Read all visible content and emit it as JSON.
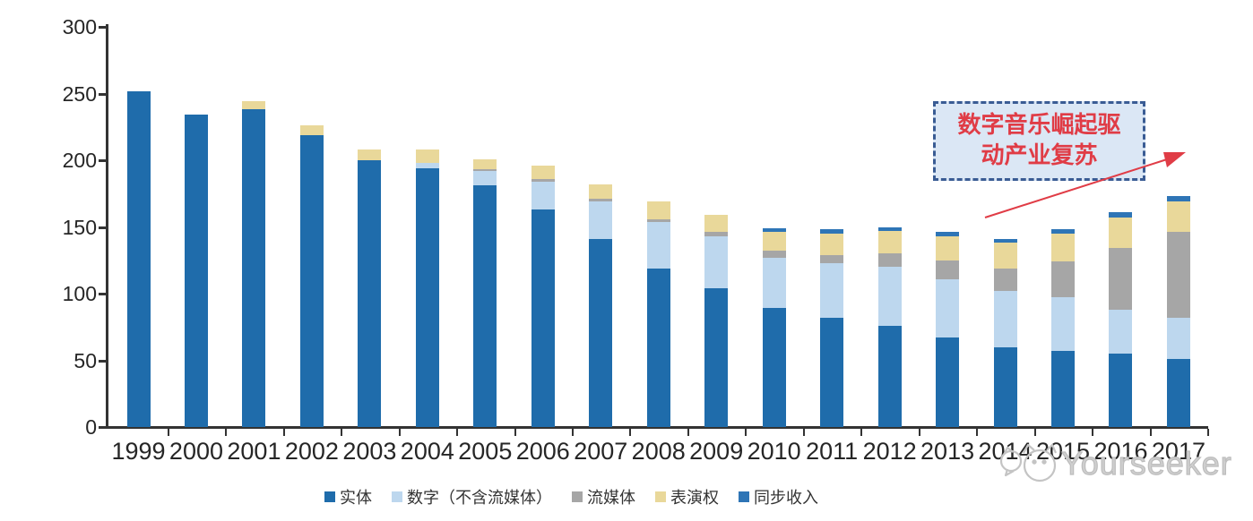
{
  "chart_data": {
    "type": "bar",
    "stacked": true,
    "title": "",
    "xlabel": "",
    "ylabel": "",
    "categories": [
      "1999",
      "2000",
      "2001",
      "2002",
      "2003",
      "2004",
      "2005",
      "2006",
      "2007",
      "2008",
      "2009",
      "2010",
      "2011",
      "2012",
      "2013",
      "2014",
      "2015",
      "2016",
      "2017"
    ],
    "series": [
      {
        "name": "实体",
        "color": "#1f6cab",
        "values": [
          252,
          234,
          238,
          219,
          200,
          194,
          181,
          163,
          141,
          119,
          104,
          89,
          82,
          76,
          67,
          60,
          57,
          55,
          51
        ]
      },
      {
        "name": "数字（不含流媒体）",
        "color": "#bdd7ee",
        "values": [
          0,
          0,
          0,
          0,
          0,
          4,
          11,
          21,
          28,
          35,
          39,
          38,
          41,
          44,
          44,
          42,
          40,
          33,
          31
        ]
      },
      {
        "name": "流媒体",
        "color": "#a6a6a6",
        "values": [
          0,
          0,
          0,
          0,
          0,
          0,
          1,
          2,
          2,
          2,
          3,
          5,
          6,
          10,
          14,
          17,
          27,
          46,
          64
        ]
      },
      {
        "name": "表演权",
        "color": "#e9d89a",
        "values": [
          0,
          0,
          6,
          7,
          8,
          10,
          8,
          10,
          11,
          13,
          13,
          14,
          16,
          17,
          18,
          19,
          21,
          23,
          23
        ]
      },
      {
        "name": "同步收入",
        "color": "#2e75b6",
        "values": [
          0,
          0,
          0,
          0,
          0,
          0,
          0,
          0,
          0,
          0,
          0,
          3,
          3,
          3,
          3,
          3,
          3,
          4,
          4
        ]
      }
    ],
    "ylim": [
      0,
      300
    ],
    "yticks": [
      0,
      50,
      100,
      150,
      200,
      250,
      300
    ],
    "grid": false,
    "legend_position": "bottom"
  },
  "annotation": {
    "line1": "数字音乐崛起驱",
    "line2": "动产业复苏",
    "text_color": "#e03c46"
  },
  "watermark": {
    "text": "Yourseeker"
  }
}
